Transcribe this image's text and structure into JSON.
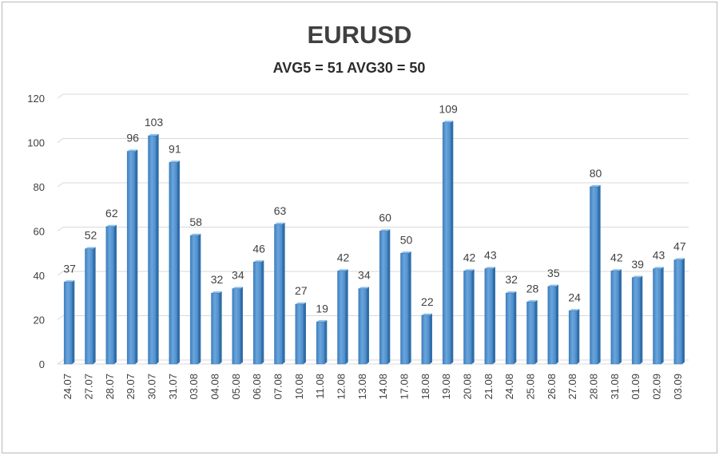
{
  "chart_data": {
    "type": "bar",
    "title": "EURUSD",
    "subtitle": "AVG5 = 51 AVG30 = 50",
    "categories": [
      "24.07",
      "27.07",
      "28.07",
      "29.07",
      "30.07",
      "31.07",
      "03.08",
      "04.08",
      "05.08",
      "06.08",
      "07.08",
      "10.08",
      "11.08",
      "12.08",
      "13.08",
      "14.08",
      "17.08",
      "18.08",
      "19.08",
      "20.08",
      "21.08",
      "24.08",
      "25.08",
      "26.08",
      "27.08",
      "28.08",
      "31.08",
      "01.09",
      "02.09",
      "03.09"
    ],
    "values": [
      37,
      52,
      62,
      96,
      103,
      91,
      58,
      32,
      34,
      46,
      63,
      27,
      19,
      42,
      34,
      60,
      50,
      22,
      109,
      42,
      43,
      32,
      28,
      35,
      24,
      80,
      42,
      39,
      43,
      47
    ],
    "ylim": [
      0,
      120
    ],
    "yticks": [
      0,
      20,
      40,
      60,
      80,
      100,
      120
    ],
    "grid": true,
    "bar_color": "#5b9bd5",
    "xlabel": "",
    "ylabel": ""
  }
}
